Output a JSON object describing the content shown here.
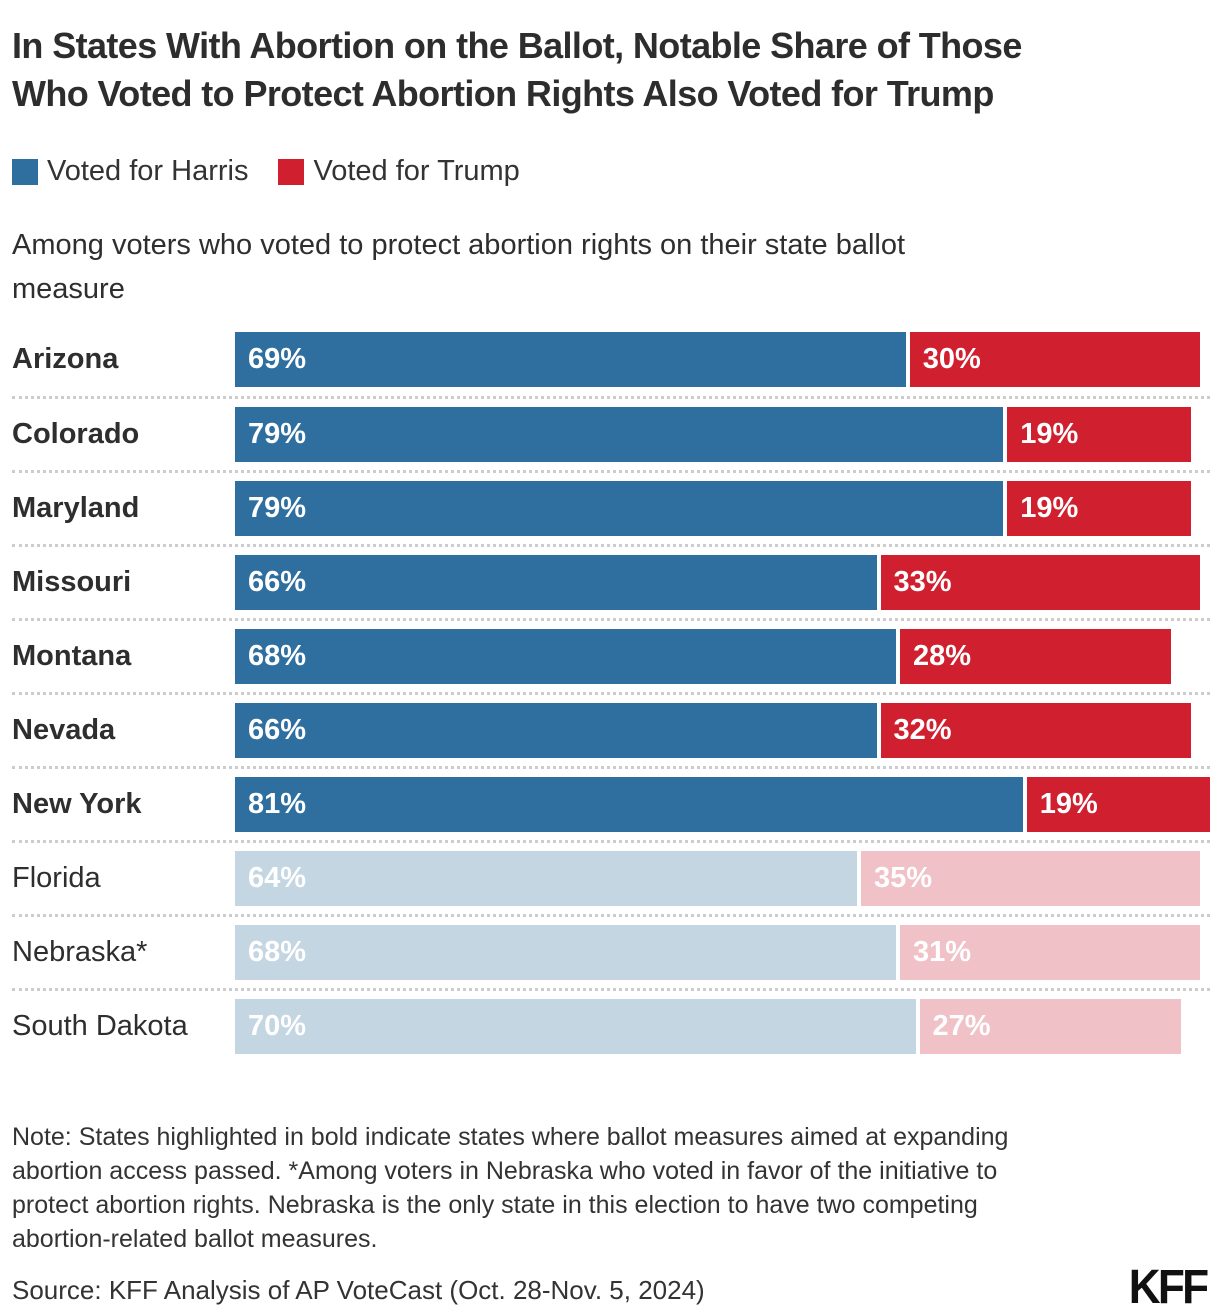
{
  "title_lines": [
    "In States With Abortion on the Ballot, Notable Share of Those",
    "Who Voted to Protect Abortion Rights Also Voted for Trump"
  ],
  "legend": [
    {
      "label": "Voted for Harris",
      "color": "#2f6f9f"
    },
    {
      "label": "Voted for Trump",
      "color": "#d0202f"
    }
  ],
  "subtitle_lines": [
    "Among voters who voted to protect abortion rights on their state ballot",
    "measure"
  ],
  "chart_data": {
    "type": "bar",
    "orientation": "horizontal",
    "stacked": true,
    "title": "In States With Abortion on the Ballot, Notable Share of Those Who Voted to Protect Abortion Rights Also Voted for Trump",
    "subtitle": "Among voters who voted to protect abortion rights on their state ballot measure",
    "series_names": [
      "Voted for Harris",
      "Voted for Trump"
    ],
    "value_unit": "%",
    "xlim": [
      0,
      100
    ],
    "grid": false,
    "legend_position": "top",
    "colors": {
      "harris": "#2f6f9f",
      "trump": "#d0202f",
      "harris_muted": "#c4d6e2",
      "trump_muted": "#f0c2c8"
    },
    "rows": [
      {
        "state": "Arizona",
        "harris": 69,
        "trump": 30,
        "measure_passed": true
      },
      {
        "state": "Colorado",
        "harris": 79,
        "trump": 19,
        "measure_passed": true
      },
      {
        "state": "Maryland",
        "harris": 79,
        "trump": 19,
        "measure_passed": true
      },
      {
        "state": "Missouri",
        "harris": 66,
        "trump": 33,
        "measure_passed": true
      },
      {
        "state": "Montana",
        "harris": 68,
        "trump": 28,
        "measure_passed": true
      },
      {
        "state": "Nevada",
        "harris": 66,
        "trump": 32,
        "measure_passed": true
      },
      {
        "state": "New York",
        "harris": 81,
        "trump": 19,
        "measure_passed": true
      },
      {
        "state": "Florida",
        "harris": 64,
        "trump": 35,
        "measure_passed": false
      },
      {
        "state": "Nebraska*",
        "harris": 68,
        "trump": 31,
        "measure_passed": false
      },
      {
        "state": "South Dakota",
        "harris": 70,
        "trump": 27,
        "measure_passed": false
      }
    ]
  },
  "note_lines": [
    "Note: States highlighted in bold indicate states where ballot measures aimed at expanding",
    "abortion access passed. *Among voters in Nebraska who voted in favor of the initiative to",
    "protect abortion rights. Nebraska is the only state in this election to have two competing",
    "abortion-related ballot measures."
  ],
  "source": "Source: KFF Analysis of AP VoteCast (Oct. 28-Nov. 5, 2024)",
  "logo_text": "KFF"
}
